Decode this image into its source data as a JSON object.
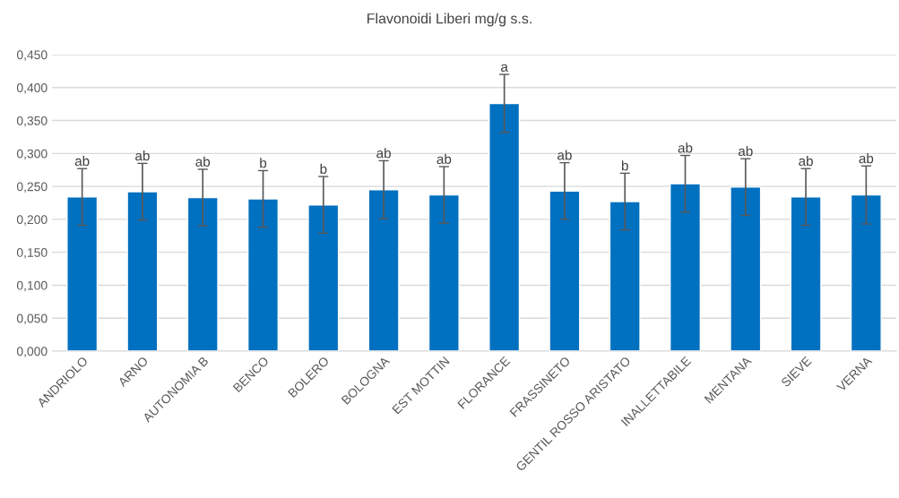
{
  "chart_data": {
    "type": "bar",
    "title": "Flavonoidi Liberi mg/g s.s.",
    "categories": [
      "ANDRIOLO",
      "ARNO",
      "AUTONOMIA B",
      "BENCO",
      "BOLERO",
      "BOLOGNA",
      "EST MOTTIN",
      "FLORANCE",
      "FRASSINETO",
      "GENTIL ROSSO ARISTATO",
      "INALLETTABILE",
      "MENTANA",
      "SIEVE",
      "VERNA"
    ],
    "series": [
      {
        "color": "#0070c0",
        "values": [
          0.234,
          0.242,
          0.233,
          0.231,
          0.222,
          0.245,
          0.237,
          0.376,
          0.243,
          0.227,
          0.254,
          0.249,
          0.234,
          0.237
        ],
        "errors": [
          0.043,
          0.043,
          0.043,
          0.043,
          0.043,
          0.044,
          0.043,
          0.044,
          0.043,
          0.043,
          0.043,
          0.043,
          0.043,
          0.044
        ]
      }
    ],
    "ylim": [
      0,
      0.45
    ],
    "yticks": [
      {
        "value": 0,
        "label": "0,000"
      },
      {
        "value": 0.05,
        "label": "0,050"
      },
      {
        "value": 0.1,
        "label": "0,100"
      },
      {
        "value": 0.15,
        "label": "0,150"
      },
      {
        "value": 0.2,
        "label": "0,200"
      },
      {
        "value": 0.25,
        "label": "0,250"
      },
      {
        "value": 0.3,
        "label": "0,300"
      },
      {
        "value": 0.35,
        "label": "0,350"
      },
      {
        "value": 0.4,
        "label": "0,400"
      },
      {
        "value": 0.45,
        "label": "0,450"
      }
    ],
    "grid": "y",
    "annotations": [
      {
        "text": "ab",
        "x": "ANDRIOLO",
        "y": 0.277
      },
      {
        "text": "ab",
        "x": "ARNO",
        "y": 0.285
      },
      {
        "text": "ab",
        "x": "AUTONOMIA B",
        "y": 0.276
      },
      {
        "text": "b",
        "x": "BENCO",
        "y": 0.274
      },
      {
        "text": "b",
        "x": "BOLERO",
        "y": 0.265
      },
      {
        "text": "ab",
        "x": "BOLOGNA",
        "y": 0.289
      },
      {
        "text": "ab",
        "x": "EST MOTTIN",
        "y": 0.28
      },
      {
        "text": "a",
        "x": "FLORANCE",
        "y": 0.42
      },
      {
        "text": "ab",
        "x": "FRASSINETO",
        "y": 0.286
      },
      {
        "text": "b",
        "x": "GENTIL ROSSO ARISTATO",
        "y": 0.27
      },
      {
        "text": "ab",
        "x": "INALLETTABILE",
        "y": 0.297
      },
      {
        "text": "ab",
        "x": "MENTANA",
        "y": 0.292
      },
      {
        "text": "ab",
        "x": "SIEVE",
        "y": 0.277
      },
      {
        "text": "ab",
        "x": "VERNA",
        "y": 0.281
      }
    ]
  }
}
